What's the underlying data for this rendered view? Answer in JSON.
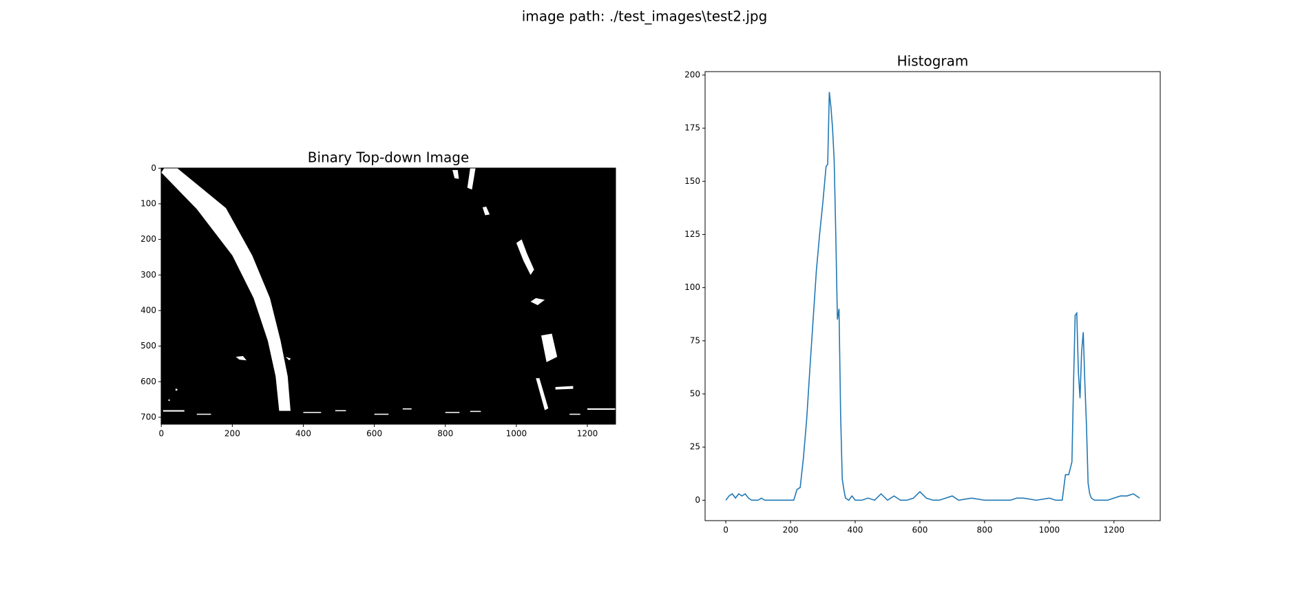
{
  "title": "image path: ./test_images\\test2.jpg",
  "chart_data": [
    {
      "type": "image",
      "title": "Binary Top-down Image",
      "xlim": [
        -0.5,
        1279.5
      ],
      "ylim": [
        719.5,
        -0.5
      ],
      "xticks": [
        0,
        200,
        400,
        600,
        800,
        1000,
        1200
      ],
      "yticks": [
        0,
        100,
        200,
        300,
        400,
        500,
        600,
        700
      ]
    },
    {
      "type": "line",
      "title": "Histogram",
      "color": "#1f77b4",
      "xlim": [
        -64,
        1343
      ],
      "ylim": [
        -9.6,
        201.6
      ],
      "xticks": [
        0,
        200,
        400,
        600,
        800,
        1000,
        1200
      ],
      "yticks": [
        0,
        25,
        50,
        75,
        100,
        125,
        150,
        175,
        200
      ],
      "x": [
        0,
        10,
        20,
        30,
        40,
        50,
        60,
        70,
        80,
        90,
        100,
        110,
        120,
        140,
        160,
        180,
        200,
        210,
        220,
        230,
        240,
        250,
        260,
        270,
        280,
        290,
        300,
        310,
        315,
        320,
        325,
        330,
        335,
        340,
        345,
        350,
        355,
        360,
        365,
        370,
        380,
        390,
        400,
        420,
        440,
        460,
        480,
        500,
        520,
        540,
        560,
        580,
        600,
        620,
        640,
        660,
        680,
        700,
        720,
        760,
        800,
        840,
        880,
        900,
        920,
        960,
        1000,
        1020,
        1040,
        1050,
        1060,
        1070,
        1075,
        1080,
        1085,
        1090,
        1095,
        1100,
        1105,
        1110,
        1115,
        1120,
        1125,
        1130,
        1140,
        1160,
        1180,
        1200,
        1220,
        1240,
        1260,
        1279
      ],
      "values": [
        0,
        2,
        3,
        1,
        3,
        2,
        3,
        1,
        0,
        0,
        0,
        1,
        0,
        0,
        0,
        0,
        0,
        0,
        5,
        6,
        20,
        38,
        62,
        85,
        108,
        125,
        140,
        157,
        158,
        192,
        185,
        175,
        160,
        125,
        85,
        90,
        40,
        10,
        5,
        1,
        0,
        2,
        0,
        0,
        1,
        0,
        3,
        0,
        2,
        0,
        0,
        1,
        4,
        1,
        0,
        0,
        1,
        2,
        0,
        1,
        0,
        0,
        0,
        1,
        1,
        0,
        1,
        0,
        0,
        12,
        12,
        18,
        55,
        87,
        88,
        60,
        48,
        70,
        79,
        55,
        35,
        8,
        3,
        1,
        0,
        0,
        0,
        1,
        2,
        2,
        3,
        1
      ]
    }
  ]
}
